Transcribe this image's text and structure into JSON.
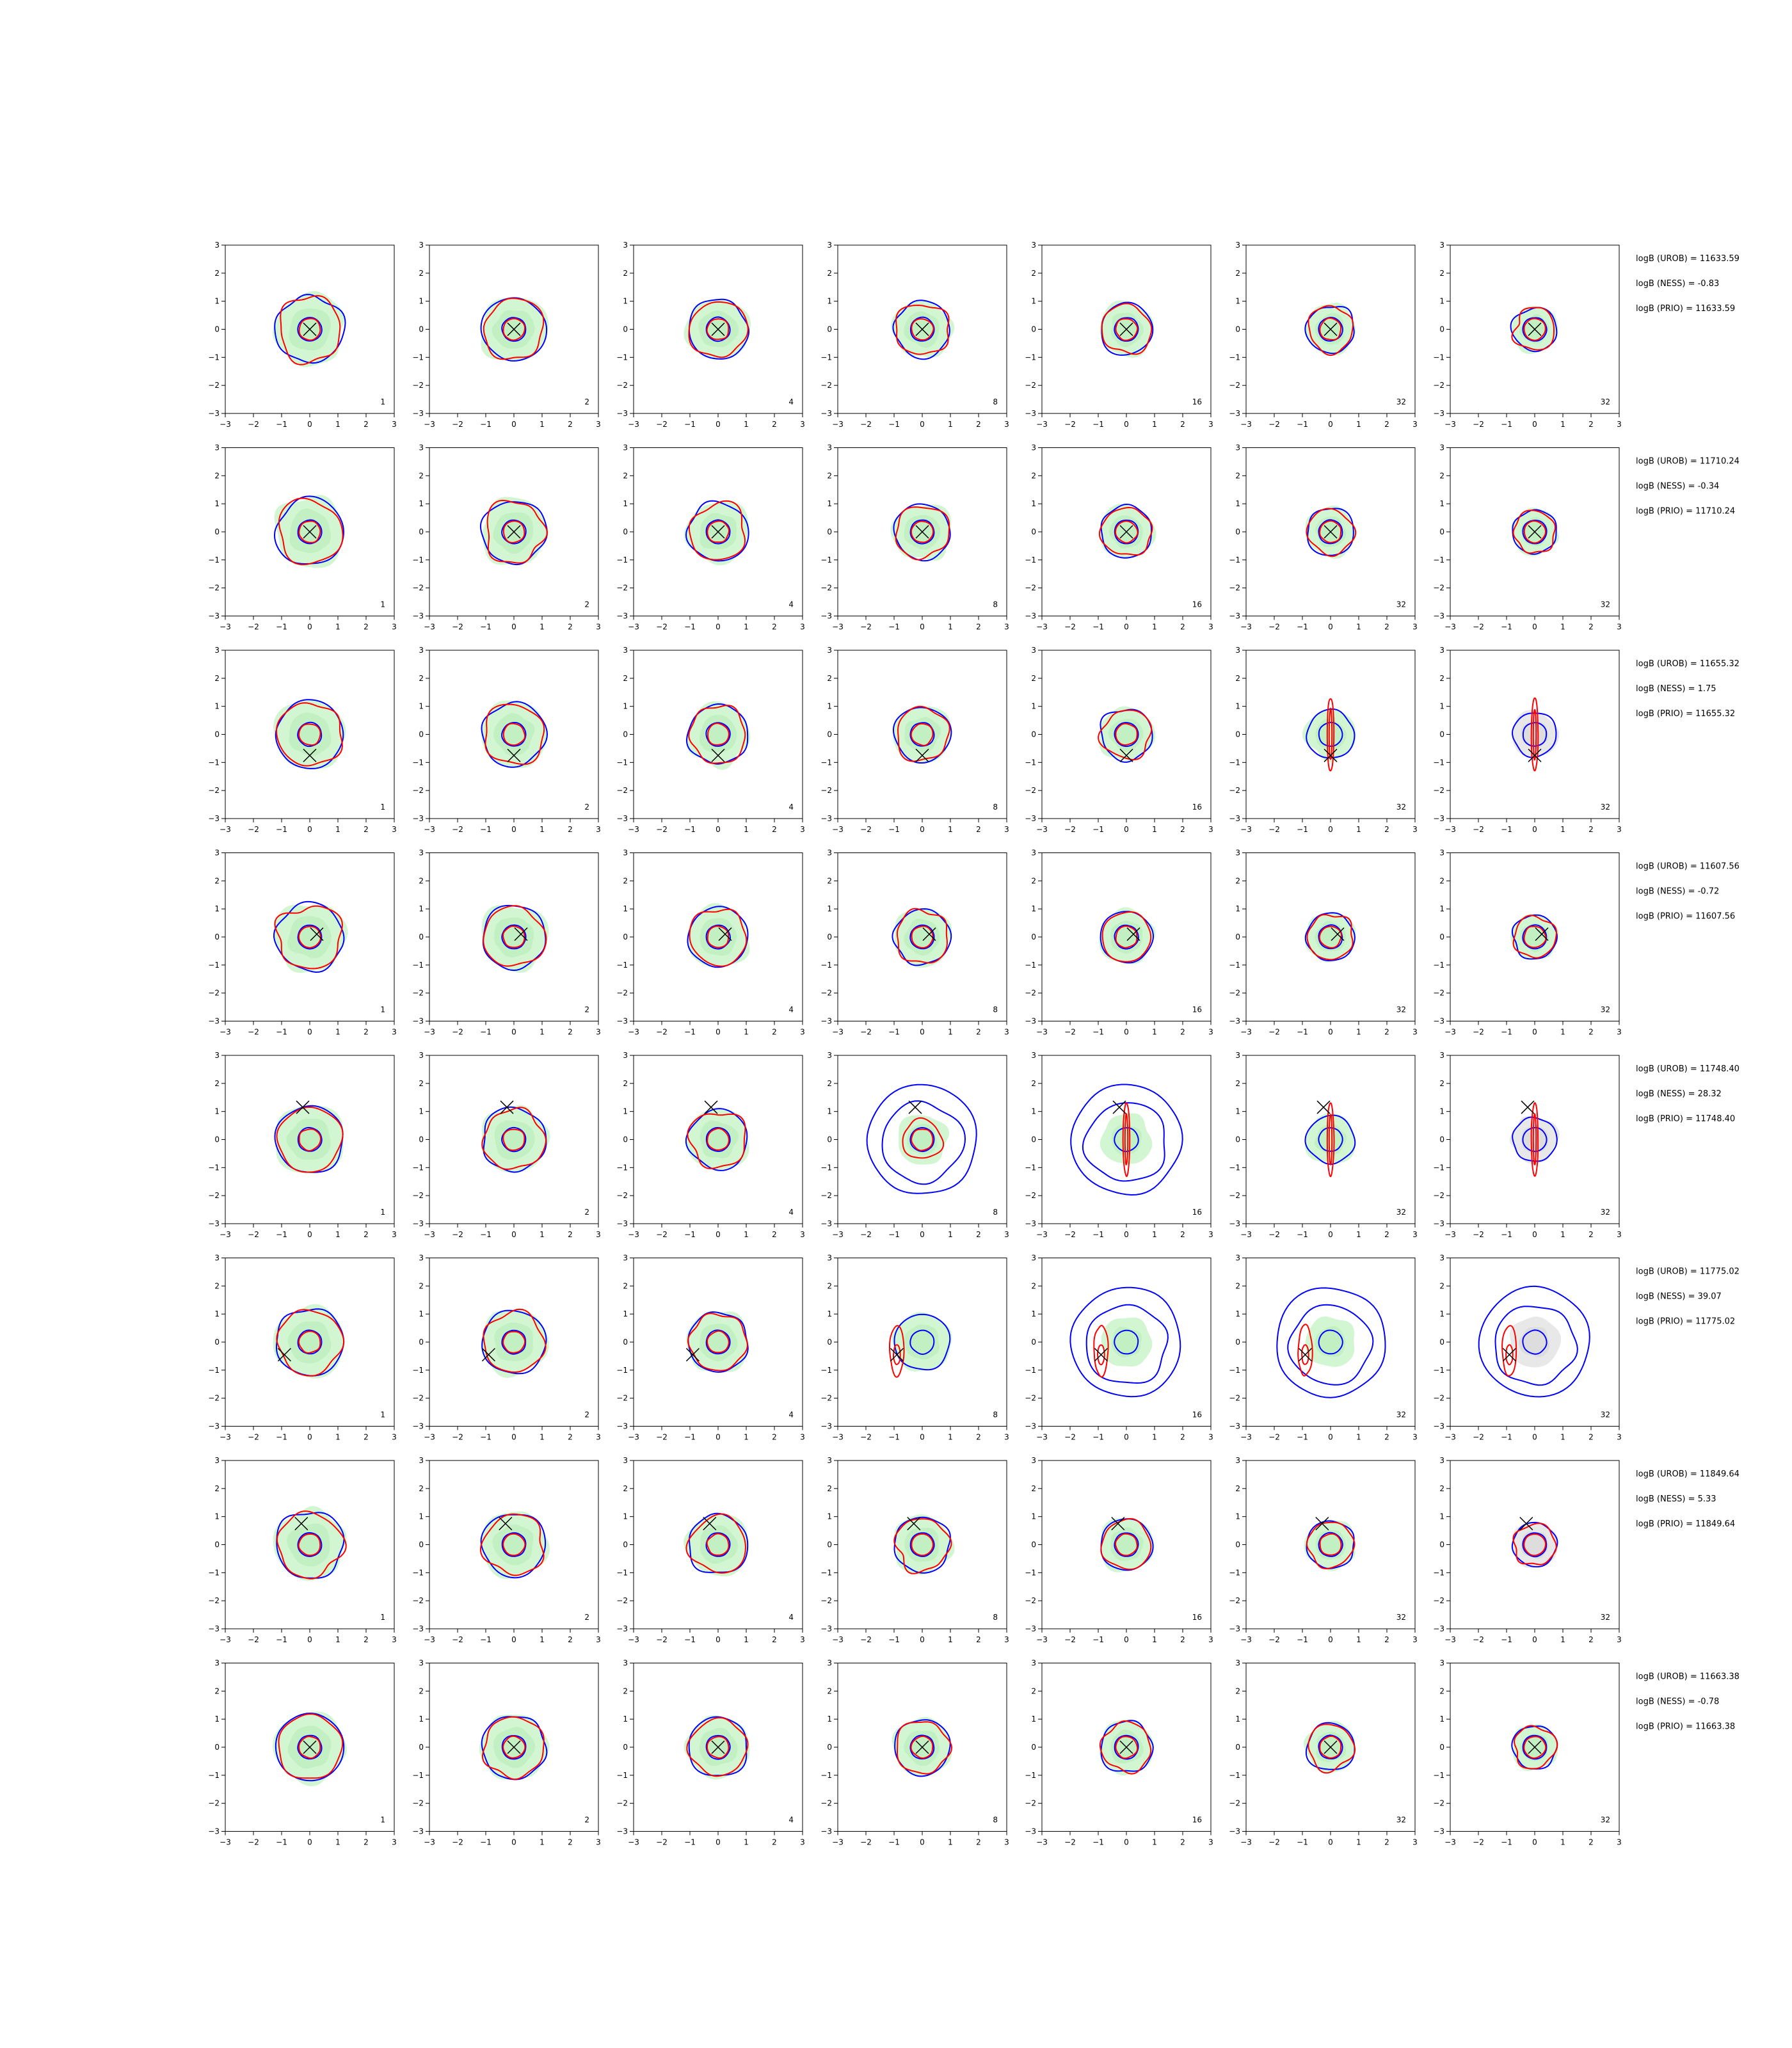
{
  "chart_data": {
    "type": "contour",
    "grid": {
      "rows": 8,
      "cols": 7
    },
    "xlim": [
      -3,
      3
    ],
    "ylim": [
      -3,
      3
    ],
    "xticks": [
      -3,
      -2,
      -1,
      0,
      1,
      2,
      3
    ],
    "yticks": [
      -3,
      -2,
      -1,
      0,
      1,
      2,
      3
    ],
    "tick_labels": [
      "−3",
      "−2",
      "−1",
      "0",
      "1",
      "2",
      "3"
    ],
    "panel_labels": [
      "1",
      "2",
      "4",
      "8",
      "16",
      "32",
      "32"
    ],
    "colors": {
      "blue_contour": "#0000ff",
      "red_contour": "#ff0000",
      "green_fill": "#ccf5cc",
      "grey_fill": "#e6e6e6",
      "marker": "#000000"
    },
    "marker_shape": "x",
    "rows": [
      {
        "marker": [
          0,
          0
        ],
        "annotations": [
          "logB (UROB) = 11633.59",
          "logB (NESS) = -0.83",
          "logB (PRIO) = 11633.59"
        ]
      },
      {
        "marker": [
          0,
          0
        ],
        "annotations": [
          "logB (UROB) = 11710.24",
          "logB (NESS) = -0.34",
          "logB (PRIO) = 11710.24"
        ]
      },
      {
        "marker": [
          0,
          -0.75
        ],
        "annotations": [
          "logB (UROB) = 11655.32",
          "logB (NESS) = 1.75",
          "logB (PRIO) = 11655.32"
        ]
      },
      {
        "marker": [
          0.25,
          0.1
        ],
        "annotations": [
          "logB (UROB) = 11607.56",
          "logB (NESS) = -0.72",
          "logB (PRIO) = 11607.56"
        ]
      },
      {
        "marker": [
          -0.25,
          1.15
        ],
        "annotations": [
          "logB (UROB) = 11748.40",
          "logB (NESS) = 28.32",
          "logB (PRIO) = 11748.40"
        ]
      },
      {
        "marker": [
          -0.9,
          -0.45
        ],
        "annotations": [
          "logB (UROB) = 11775.02",
          "logB (NESS) = 39.07",
          "logB (PRIO) = 11775.02"
        ]
      },
      {
        "marker": [
          -0.3,
          0.75
        ],
        "annotations": [
          "logB (UROB) = 11849.64",
          "logB (NESS) = 5.33",
          "logB (PRIO) = 11849.64"
        ]
      },
      {
        "marker": [
          0,
          0
        ],
        "annotations": [
          "logB (UROB) = 11663.38",
          "logB (NESS) = -0.78",
          "logB (PRIO) = 11663.38"
        ]
      }
    ]
  }
}
